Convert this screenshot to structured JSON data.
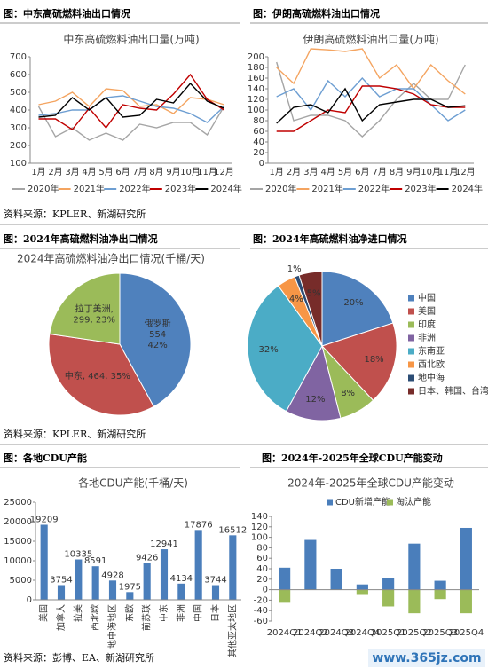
{
  "sources": [
    "资料来源：KPLER、新湖研究所",
    "资料来源：KPLER、新湖研究所",
    "资料来源：彭博、EA、新湖研究所"
  ],
  "watermark": "www.365jz.com",
  "chart_data": [
    {
      "type": "line",
      "caption": "图：中东高硫燃料油出口情况",
      "title": "中东高硫燃料油出口量(万吨)",
      "categories": [
        "1月",
        "2月",
        "3月",
        "4月",
        "5月",
        "6月",
        "7月",
        "8月",
        "9月",
        "10月",
        "11月",
        "12月"
      ],
      "series": [
        {
          "name": "2020年",
          "color": "#a5a5a5",
          "values": [
            420,
            250,
            300,
            230,
            270,
            230,
            320,
            300,
            330,
            330,
            260,
            420
          ]
        },
        {
          "name": "2021年",
          "color": "#f4a460",
          "values": [
            430,
            450,
            500,
            420,
            520,
            510,
            420,
            430,
            380,
            470,
            460,
            430
          ]
        },
        {
          "name": "2022年",
          "color": "#6d9ed2",
          "values": [
            370,
            380,
            400,
            400,
            470,
            480,
            450,
            420,
            410,
            380,
            330,
            420
          ]
        },
        {
          "name": "2023年",
          "color": "#c00000",
          "values": [
            350,
            350,
            290,
            410,
            300,
            430,
            410,
            400,
            490,
            600,
            460,
            400
          ]
        },
        {
          "name": "2024年",
          "color": "#000000",
          "values": [
            360,
            370,
            470,
            400,
            470,
            360,
            370,
            460,
            440,
            550,
            450,
            410
          ]
        }
      ],
      "ylim": [
        100,
        700
      ],
      "yticks": [
        100,
        200,
        300,
        400,
        500,
        600,
        700
      ]
    },
    {
      "type": "line",
      "caption": "图：伊朗高硫燃料油出口情况",
      "title": "伊朗高硫燃料油出口量(万吨)",
      "categories": [
        "1月",
        "2月",
        "3月",
        "4月",
        "5月",
        "6月",
        "7月",
        "8月",
        "9月",
        "10月",
        "11月",
        "12月"
      ],
      "series": [
        {
          "name": "2020年",
          "color": "#a5a5a5",
          "values": [
            190,
            80,
            90,
            90,
            80,
            50,
            80,
            120,
            150,
            120,
            120,
            185
          ]
        },
        {
          "name": "2021年",
          "color": "#f4a460",
          "values": [
            180,
            150,
            215,
            213,
            210,
            215,
            160,
            185,
            140,
            185,
            155,
            130
          ]
        },
        {
          "name": "2022年",
          "color": "#6d9ed2",
          "values": [
            125,
            140,
            100,
            155,
            125,
            160,
            125,
            140,
            140,
            110,
            80,
            100
          ]
        },
        {
          "name": "2023年",
          "color": "#c00000",
          "values": [
            60,
            60,
            80,
            100,
            95,
            145,
            145,
            140,
            130,
            110,
            105,
            105
          ]
        },
        {
          "name": "2024年",
          "color": "#000000",
          "values": [
            75,
            105,
            110,
            95,
            140,
            80,
            110,
            115,
            120,
            120,
            105,
            108
          ]
        }
      ],
      "ylim": [
        0,
        200
      ],
      "yticks": [
        0,
        20,
        40,
        60,
        80,
        100,
        120,
        140,
        160,
        180,
        200
      ]
    },
    {
      "type": "pie",
      "caption": "图：2024年高硫燃料油净出口情况",
      "title": "2024年高硫燃料油净出口情况(千桶/天)",
      "values": [
        554,
        464,
        299
      ],
      "value_labels": [
        [
          "俄罗斯",
          "554",
          "42%"
        ],
        [
          "中东, 464, 35%"
        ],
        [
          "拉丁美洲,",
          "299, 23%"
        ]
      ],
      "colors": [
        "#4f81bd",
        "#c0504d",
        "#9bbb59"
      ]
    },
    {
      "type": "pie",
      "caption": "图：2024年高硫燃料油净进口情况",
      "categories": [
        "中国",
        "美国",
        "印度",
        "非洲",
        "东南亚",
        "西北欧",
        "地中海",
        "日本、韩国、台湾、香"
      ],
      "values": [
        20,
        18,
        8,
        12,
        32,
        4,
        1,
        5
      ],
      "value_labels": [
        "20%",
        "18%",
        "8%",
        "12%",
        "32%",
        "4%",
        "1%",
        "5%"
      ],
      "colors": [
        "#4f81bd",
        "#c0504d",
        "#9bbb59",
        "#8064a2",
        "#4bacc6",
        "#f79646",
        "#2c4d75",
        "#772c2a"
      ],
      "legend": "right"
    },
    {
      "type": "bar",
      "caption": "图：各地CDU产能",
      "title": "各地CDU产能(千桶/天)",
      "categories": [
        "美国",
        "加拿大",
        "拉美",
        "西北欧",
        "地中海地区",
        "东欧",
        "前苏联",
        "中东",
        "非洲",
        "中国",
        "日本",
        "其他亚太地区"
      ],
      "values": [
        19209,
        3754,
        10335,
        8591,
        4928,
        1975,
        9426,
        12941,
        4134,
        17876,
        3744,
        16512
      ],
      "color": "#4a7ebb",
      "ylim": [
        0,
        25000
      ],
      "yticks": [
        0,
        5000,
        10000,
        15000,
        20000,
        25000
      ]
    },
    {
      "type": "bar",
      "caption": "图：2024年-2025年全球CDU产能变动",
      "title": "2024年-2025年全球CDU产能变动",
      "categories": [
        "2024Q1",
        "2024Q2",
        "2024Q3",
        "2024Q4",
        "2025Q1",
        "2025Q2",
        "2025Q3",
        "2025Q4"
      ],
      "series": [
        {
          "name": "CDU新增产能",
          "color": "#4a7ebb",
          "values": [
            42,
            95,
            40,
            10,
            22,
            88,
            17,
            118
          ]
        },
        {
          "name": "淘汰产能",
          "color": "#9bbb59",
          "values": [
            -25,
            0,
            0,
            -10,
            -32,
            -45,
            -18,
            -45
          ]
        }
      ],
      "ylim": [
        -60,
        140
      ],
      "yticks": [
        -60,
        -40,
        -20,
        0,
        20,
        40,
        60,
        80,
        100,
        120,
        140
      ],
      "legend": "top"
    }
  ]
}
